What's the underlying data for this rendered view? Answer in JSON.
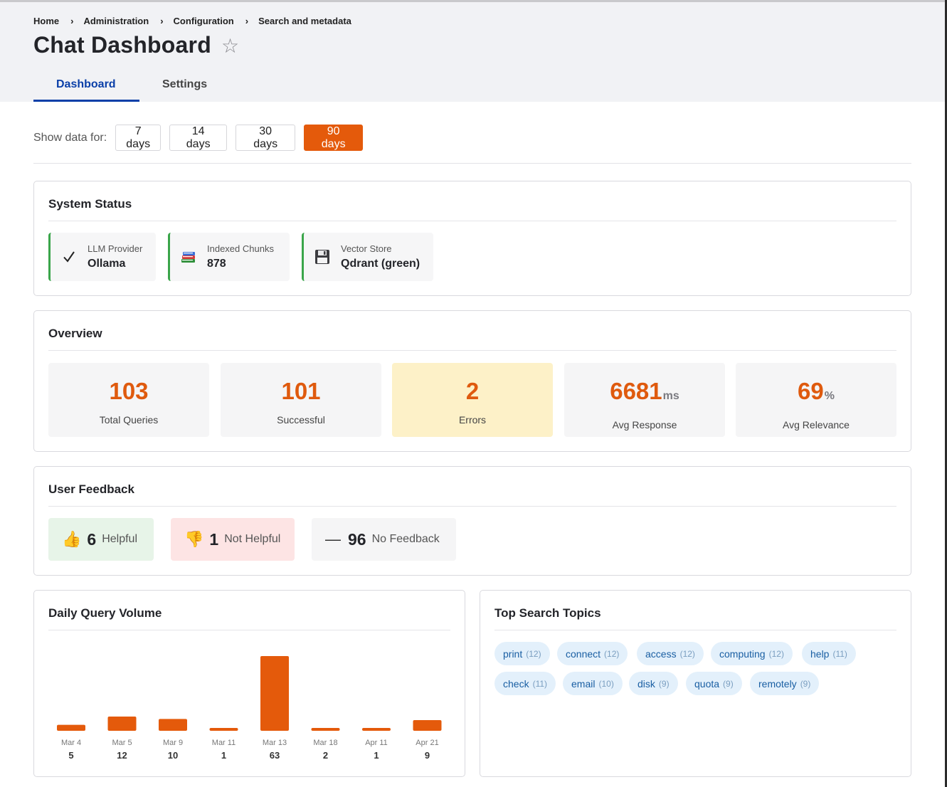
{
  "breadcrumb": {
    "items": [
      "Home",
      "Administration",
      "Configuration",
      "Search and metadata"
    ],
    "separator": "›"
  },
  "page": {
    "title": "Chat Dashboard",
    "favorite_icon": "star-outline-icon"
  },
  "tabs": {
    "dashboard": "Dashboard",
    "settings": "Settings",
    "active": "Dashboard"
  },
  "filter": {
    "label": "Show data for:",
    "options": [
      "7 days",
      "14 days",
      "30 days",
      "90 days"
    ],
    "selected": "90 days"
  },
  "system_status": {
    "title": "System Status",
    "items": [
      {
        "label": "LLM Provider",
        "value": "Ollama",
        "icon": "checkmark-icon"
      },
      {
        "label": "Indexed Chunks",
        "value": "878",
        "icon": "books-icon"
      },
      {
        "label": "Vector Store",
        "value": "Qdrant (green)",
        "icon": "floppy-disk-icon"
      }
    ],
    "ok_color": "#3aa54a"
  },
  "overview": {
    "title": "Overview",
    "stats": [
      {
        "value": "103",
        "unit": "",
        "label": "Total Queries"
      },
      {
        "value": "101",
        "unit": "",
        "label": "Successful"
      },
      {
        "value": "2",
        "unit": "",
        "label": "Errors"
      },
      {
        "value": "6681",
        "unit": "ms",
        "label": "Avg Response"
      },
      {
        "value": "69",
        "unit": "%",
        "label": "Avg Relevance"
      }
    ],
    "accent_color": "#df5a0e"
  },
  "feedback": {
    "title": "User Feedback",
    "helpful": {
      "count": "6",
      "label": "Helpful",
      "icon": "thumbs-up-icon"
    },
    "not_helpful": {
      "count": "1",
      "label": "Not Helpful",
      "icon": "thumbs-down-icon"
    },
    "no_feedback": {
      "count": "96",
      "label": "No Feedback",
      "icon": "dash-icon"
    }
  },
  "daily_volume": {
    "title": "Daily Query Volume"
  },
  "chart_data": {
    "type": "bar",
    "categories": [
      "Mar 4",
      "Mar 5",
      "Mar 9",
      "Mar 11",
      "Mar 13",
      "Mar 18",
      "Apr 11",
      "Apr 21"
    ],
    "values": [
      5,
      12,
      10,
      1,
      63,
      2,
      1,
      9
    ],
    "title": "Daily Query Volume",
    "xlabel": "",
    "ylabel": "",
    "ylim": [
      0,
      63
    ],
    "color": "#e45a0b",
    "grid": false
  },
  "topics": {
    "title": "Top Search Topics",
    "items": [
      {
        "term": "print",
        "count": "(12)"
      },
      {
        "term": "connect",
        "count": "(12)"
      },
      {
        "term": "access",
        "count": "(12)"
      },
      {
        "term": "computing",
        "count": "(12)"
      },
      {
        "term": "help",
        "count": "(11)"
      },
      {
        "term": "check",
        "count": "(11)"
      },
      {
        "term": "email",
        "count": "(10)"
      },
      {
        "term": "disk",
        "count": "(9)"
      },
      {
        "term": "quota",
        "count": "(9)"
      },
      {
        "term": "remotely",
        "count": "(9)"
      }
    ]
  }
}
